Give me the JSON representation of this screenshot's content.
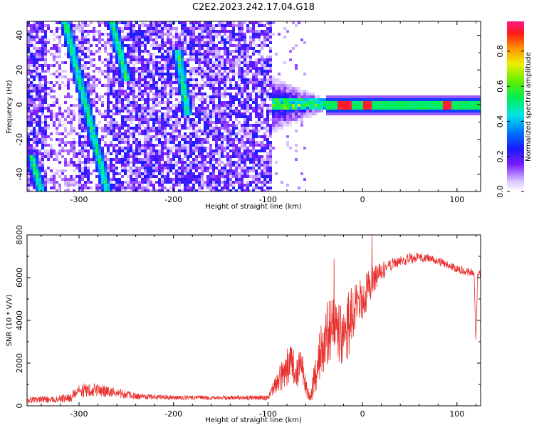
{
  "title": "C2E2.2023.242.17.04.G18",
  "chart_data": [
    {
      "type": "heatmap",
      "name": "spectrogram",
      "xlabel": "Height of straight line (km)",
      "ylabel": "Frequency (Hz)",
      "xlim": [
        -355,
        125
      ],
      "ylim": [
        -50,
        48
      ],
      "xticks": [
        -300,
        -200,
        -100,
        0,
        100
      ],
      "yticks": [
        -40,
        -20,
        0,
        20,
        40
      ],
      "colorbar": {
        "label": "Normalized spectral amplitude",
        "ticks": [
          0.0,
          0.2,
          0.4,
          0.6,
          0.8
        ],
        "range": [
          0,
          0.97
        ]
      },
      "features": {
        "noise_region_x": [
          -355,
          -95
        ],
        "transition_x": [
          -95,
          -40
        ],
        "signal_line_x": [
          -40,
          125
        ],
        "signal_frequency": 0,
        "diagonal_streaks": [
          {
            "from": [
              -315,
              48
            ],
            "to": [
              -270,
              -50
            ]
          },
          {
            "from": [
              -265,
              48
            ],
            "to": [
              -250,
              15
            ]
          },
          {
            "from": [
              -195,
              30
            ],
            "to": [
              -185,
              -5
            ]
          },
          {
            "from": [
              -350,
              -30
            ],
            "to": [
              -340,
              -50
            ]
          }
        ],
        "peak_segments_x": [
          [
            -25,
            -10
          ],
          [
            0,
            10
          ],
          [
            85,
            95
          ]
        ]
      }
    },
    {
      "type": "line",
      "name": "snr",
      "xlabel": "Height of straight line (km)",
      "ylabel": "SNR (10 * V/V)",
      "xlim": [
        -355,
        125
      ],
      "ylim": [
        0,
        8000
      ],
      "xticks": [
        -300,
        -200,
        -100,
        0,
        100
      ],
      "yticks": [
        0,
        2000,
        4000,
        6000,
        8000
      ],
      "color": "#e8302e",
      "series_envelope": {
        "x": [
          -355,
          -310,
          -300,
          -280,
          -260,
          -240,
          -200,
          -150,
          -100,
          -80,
          -75,
          -70,
          -65,
          -60,
          -55,
          -50,
          -45,
          -40,
          -35,
          -30,
          -25,
          -20,
          -15,
          -10,
          -5,
          0,
          5,
          10,
          20,
          30,
          40,
          50,
          60,
          70,
          80,
          90,
          100,
          110,
          118,
          120,
          122,
          125
        ],
        "y": [
          250,
          350,
          700,
          750,
          600,
          450,
          380,
          380,
          380,
          1800,
          2000,
          1500,
          2000,
          900,
          300,
          1500,
          2500,
          3200,
          3500,
          3800,
          3400,
          2800,
          3800,
          4300,
          4800,
          4900,
          5400,
          5800,
          6300,
          6600,
          6750,
          6900,
          6950,
          6900,
          6750,
          6600,
          6400,
          6300,
          6200,
          3100,
          6200,
          6200
        ],
        "spread": [
          150,
          200,
          350,
          300,
          250,
          150,
          100,
          100,
          120,
          900,
          900,
          800,
          900,
          500,
          200,
          900,
          1400,
          1500,
          1500,
          1600,
          1500,
          1500,
          1500,
          1400,
          1200,
          1000,
          900,
          700,
          400,
          300,
          250,
          250,
          250,
          200,
          200,
          200,
          200,
          180,
          180,
          0,
          180,
          180
        ]
      },
      "spikes": [
        {
          "x": -30,
          "y": 6900
        },
        {
          "x": 10,
          "y": 8000
        },
        {
          "x": 120,
          "y": 3100
        }
      ]
    }
  ]
}
